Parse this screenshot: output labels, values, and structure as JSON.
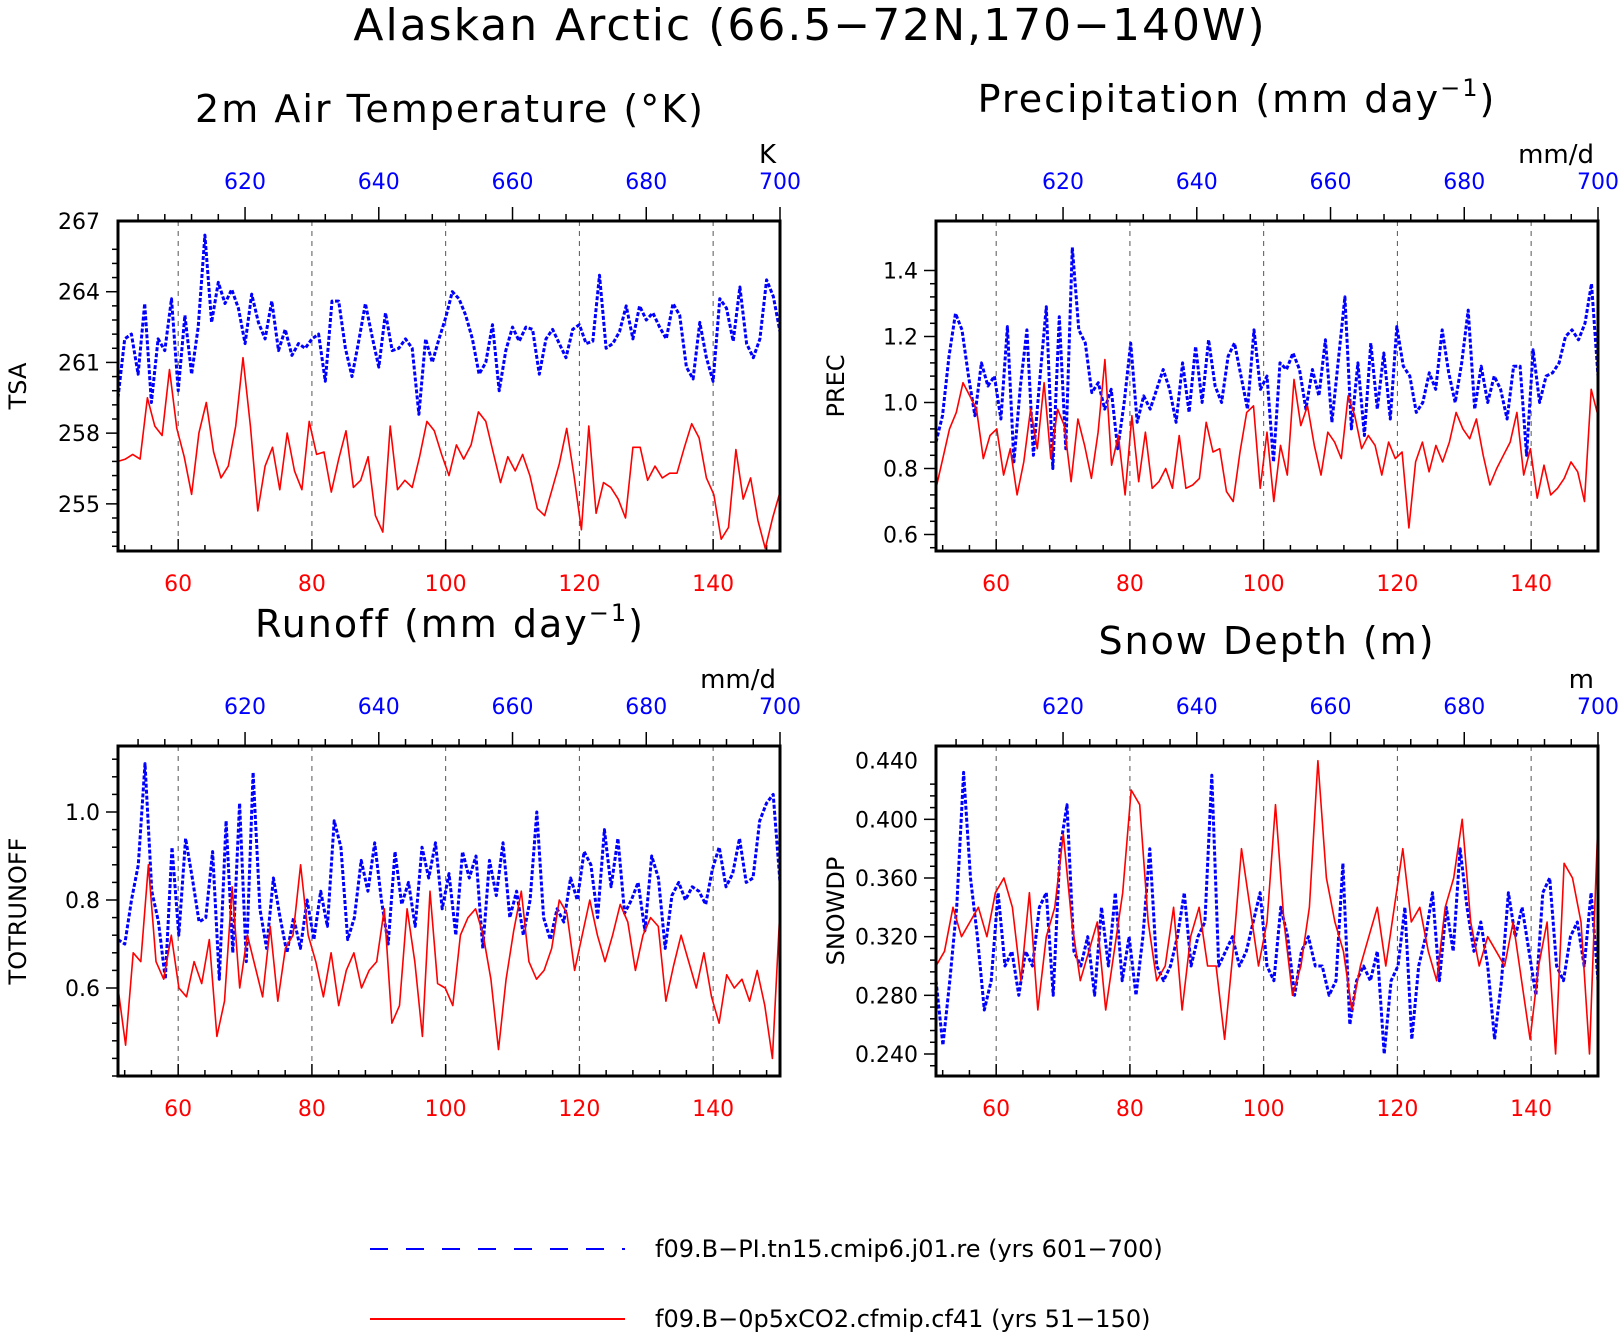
{
  "title": "Alaskan Arctic (66.5−72N,170−140W)",
  "colors": {
    "blue": "#0000ff",
    "red": "#ff0000",
    "axis": "#000000",
    "grid": "#555555"
  },
  "legend": [
    {
      "label": "f09.B−PI.tn15.cmip6.j01.re (yrs 601−700)",
      "color": "#0000ff",
      "style": "dashed"
    },
    {
      "label": "f09.B−0p5xCO2.cfmip.cf41 (yrs 51−150)",
      "color": "#ff0000",
      "style": "solid"
    }
  ],
  "chart_data": [
    {
      "type": "line",
      "title": "2m Air Temperature (°K)",
      "ylabel": "TSA",
      "unit_label": "K",
      "ylim": [
        253,
        267
      ],
      "yticks": [
        "255",
        "258",
        "261",
        "264",
        "267"
      ],
      "ytick_values": [
        255,
        258,
        261,
        264,
        267
      ],
      "bottom_axis": {
        "range": [
          51,
          150
        ],
        "ticks": [
          60,
          80,
          100,
          120,
          140
        ],
        "color": "red"
      },
      "top_axis": {
        "range": [
          601,
          700
        ],
        "ticks": [
          620,
          640,
          660,
          680,
          700
        ],
        "color": "blue"
      },
      "grid": "vertical dashed",
      "series": [
        {
          "name": "f09.B−PI.tn15.cmip6.j01.re (yrs 601−700)",
          "color": "#0000ff",
          "style": "dashed",
          "values": [
            259.5,
            262.0,
            262.2,
            260.5,
            263.5,
            259.3,
            262.0,
            261.5,
            263.7,
            259.8,
            263.0,
            260.5,
            262.5,
            266.4,
            262.7,
            264.4,
            263.5,
            264.1,
            263.3,
            261.8,
            263.9,
            262.7,
            262.0,
            263.6,
            261.5,
            262.4,
            261.3,
            261.8,
            261.6,
            262.0,
            262.2,
            260.2,
            263.6,
            263.6,
            261.6,
            260.4,
            261.9,
            263.5,
            262.1,
            260.8,
            263.1,
            261.5,
            261.6,
            262.0,
            261.6,
            258.8,
            262.0,
            261.0,
            262.0,
            262.9,
            264.0,
            263.7,
            263.0,
            262.0,
            260.5,
            261.0,
            262.6,
            259.8,
            261.5,
            262.5,
            261.9,
            262.5,
            262.4,
            260.5,
            262.0,
            262.4,
            261.8,
            261.2,
            262.4,
            262.6,
            261.8,
            261.9,
            264.7,
            261.6,
            261.8,
            262.3,
            263.4,
            262.0,
            263.4,
            262.8,
            263.1,
            262.5,
            262.0,
            263.5,
            263.0,
            260.8,
            260.3,
            262.7,
            261.2,
            260.2,
            263.7,
            263.3,
            261.9,
            264.2,
            261.8,
            261.2,
            262.0,
            264.5,
            263.8,
            262.3
          ]
        },
        {
          "name": "f09.B−0p5xCO2.cfmip.cf41 (yrs 51−150)",
          "color": "#ff0000",
          "style": "solid",
          "values": [
            256.8,
            256.9,
            257.1,
            256.9,
            259.5,
            258.3,
            257.9,
            260.7,
            258.2,
            257.0,
            255.4,
            258.0,
            259.3,
            257.2,
            256.1,
            256.6,
            258.3,
            261.2,
            258.3,
            254.7,
            256.6,
            257.4,
            255.6,
            258.0,
            256.4,
            255.6,
            258.5,
            257.1,
            257.2,
            255.5,
            256.9,
            258.1,
            255.7,
            256.0,
            257.0,
            254.5,
            253.8,
            258.3,
            255.6,
            256.0,
            255.7,
            257.0,
            258.5,
            258.1,
            257.1,
            256.2,
            257.5,
            256.9,
            257.5,
            258.9,
            258.5,
            257.2,
            255.9,
            257.0,
            256.4,
            257.1,
            256.2,
            254.8,
            254.5,
            255.6,
            256.7,
            258.2,
            256.2,
            253.9,
            258.3,
            254.6,
            255.9,
            255.7,
            255.2,
            254.4,
            257.4,
            257.4,
            256.0,
            256.6,
            256.1,
            256.3,
            256.3,
            257.4,
            258.4,
            257.8,
            256.1,
            255.4,
            253.5,
            254.0,
            257.3,
            255.2,
            256.1,
            254.3,
            253.1,
            254.4,
            255.5
          ]
        }
      ]
    },
    {
      "type": "line",
      "title": "Precipitation (mm day",
      "title_sup": "−1",
      "title_close": ")",
      "ylabel": "PREC",
      "unit_label": "mm/d",
      "ylim": [
        0.55,
        1.55
      ],
      "yticks": [
        "0.6",
        "0.8",
        "1.0",
        "1.2",
        "1.4"
      ],
      "ytick_values": [
        0.6,
        0.8,
        1.0,
        1.2,
        1.4
      ],
      "bottom_axis": {
        "range": [
          51,
          150
        ],
        "ticks": [
          60,
          80,
          100,
          120,
          140
        ],
        "color": "red"
      },
      "top_axis": {
        "range": [
          601,
          700
        ],
        "ticks": [
          620,
          640,
          660,
          680,
          700
        ],
        "color": "blue"
      },
      "grid": "vertical dashed",
      "series": [
        {
          "name": "f09.B−PI.tn15.cmip6.j01.re (yrs 601−700)",
          "color": "#0000ff",
          "style": "dashed",
          "values": [
            0.88,
            0.96,
            1.14,
            1.27,
            1.22,
            1.08,
            0.96,
            1.12,
            1.05,
            1.08,
            0.95,
            1.23,
            0.82,
            1.05,
            1.22,
            0.84,
            1.07,
            1.29,
            0.8,
            1.26,
            0.86,
            1.47,
            1.22,
            1.18,
            1.03,
            1.06,
            0.98,
            1.04,
            0.86,
            1.0,
            1.18,
            0.94,
            1.02,
            0.98,
            1.04,
            1.1,
            1.04,
            0.94,
            1.12,
            0.97,
            1.17,
            1.0,
            1.19,
            1.05,
            1.0,
            1.14,
            1.18,
            1.08,
            0.98,
            1.22,
            1.04,
            1.08,
            0.82,
            1.12,
            1.1,
            1.15,
            1.1,
            0.98,
            1.1,
            1.02,
            1.19,
            0.94,
            1.13,
            1.32,
            0.92,
            1.12,
            0.9,
            1.18,
            0.98,
            1.15,
            0.95,
            1.23,
            1.11,
            1.08,
            0.97,
            1.0,
            1.09,
            1.04,
            1.22,
            1.09,
            1.0,
            1.12,
            1.28,
            0.98,
            1.11,
            1.0,
            1.08,
            1.04,
            0.95,
            1.11,
            1.11,
            0.84,
            1.16,
            1.0,
            1.08,
            1.09,
            1.12,
            1.2,
            1.22,
            1.19,
            1.24,
            1.36,
            1.08
          ]
        },
        {
          "name": "f09.B−0p5xCO2.cfmip.cf41 (yrs 51−150)",
          "color": "#ff0000",
          "style": "solid",
          "values": [
            0.74,
            0.83,
            0.92,
            0.97,
            1.06,
            1.02,
            0.98,
            0.83,
            0.9,
            0.92,
            0.78,
            0.86,
            0.72,
            0.82,
            0.98,
            0.86,
            1.06,
            0.83,
            0.98,
            0.93,
            0.76,
            0.95,
            0.87,
            0.77,
            0.91,
            1.13,
            0.81,
            0.9,
            0.72,
            0.96,
            0.76,
            0.91,
            0.74,
            0.76,
            0.8,
            0.74,
            0.9,
            0.74,
            0.75,
            0.77,
            0.94,
            0.85,
            0.86,
            0.73,
            0.7,
            0.85,
            0.97,
            0.99,
            0.74,
            0.91,
            0.7,
            0.87,
            0.78,
            1.07,
            0.93,
            0.99,
            0.87,
            0.78,
            0.91,
            0.88,
            0.83,
            1.02,
            0.96,
            0.86,
            0.9,
            0.87,
            0.78,
            0.88,
            0.83,
            0.85,
            0.62,
            0.82,
            0.88,
            0.79,
            0.87,
            0.82,
            0.88,
            0.97,
            0.92,
            0.89,
            0.95,
            0.84,
            0.75,
            0.8,
            0.84,
            0.88,
            0.97,
            0.78,
            0.86,
            0.71,
            0.81,
            0.72,
            0.74,
            0.77,
            0.82,
            0.79,
            0.7,
            1.04,
            0.96
          ]
        }
      ]
    },
    {
      "type": "line",
      "title": "Runoff (mm day",
      "title_sup": "−1",
      "title_close": ")",
      "ylabel": "TOTRUNOFF",
      "unit_label": "mm/d",
      "ylim": [
        0.4,
        1.15
      ],
      "yticks": [
        "0.6",
        "0.8",
        "1.0"
      ],
      "ytick_values": [
        0.6,
        0.8,
        1.0
      ],
      "bottom_axis": {
        "range": [
          51,
          150
        ],
        "ticks": [
          60,
          80,
          100,
          120,
          140
        ],
        "color": "red"
      },
      "top_axis": {
        "range": [
          601,
          700
        ],
        "ticks": [
          620,
          640,
          660,
          680,
          700
        ],
        "color": "blue"
      },
      "grid": "vertical dashed",
      "series": [
        {
          "name": "f09.B−PI.tn15.cmip6.j01.re (yrs 601−700)",
          "color": "#0000ff",
          "style": "dashed",
          "values": [
            0.71,
            0.7,
            0.8,
            0.88,
            1.11,
            0.82,
            0.75,
            0.62,
            0.92,
            0.72,
            0.94,
            0.85,
            0.75,
            0.76,
            0.91,
            0.62,
            0.98,
            0.68,
            1.02,
            0.66,
            1.09,
            0.78,
            0.69,
            0.85,
            0.76,
            0.68,
            0.76,
            0.69,
            0.8,
            0.71,
            0.82,
            0.74,
            0.98,
            0.92,
            0.71,
            0.76,
            0.89,
            0.82,
            0.93,
            0.8,
            0.7,
            0.91,
            0.79,
            0.84,
            0.74,
            0.92,
            0.85,
            0.93,
            0.78,
            0.86,
            0.72,
            0.91,
            0.85,
            0.9,
            0.69,
            0.89,
            0.81,
            0.93,
            0.76,
            0.82,
            0.72,
            0.8,
            1.0,
            0.76,
            0.71,
            0.78,
            0.75,
            0.85,
            0.8,
            0.91,
            0.88,
            0.76,
            0.96,
            0.83,
            0.94,
            0.77,
            0.8,
            0.84,
            0.73,
            0.9,
            0.85,
            0.69,
            0.81,
            0.84,
            0.8,
            0.83,
            0.82,
            0.79,
            0.87,
            0.92,
            0.83,
            0.86,
            0.94,
            0.84,
            0.85,
            0.98,
            1.02,
            1.04,
            0.84
          ]
        },
        {
          "name": "f09.B−0p5xCO2.cfmip.cf41 (yrs 51−150)",
          "color": "#ff0000",
          "style": "solid",
          "values": [
            0.6,
            0.47,
            0.68,
            0.66,
            0.88,
            0.66,
            0.62,
            0.72,
            0.6,
            0.58,
            0.66,
            0.61,
            0.71,
            0.49,
            0.57,
            0.83,
            0.6,
            0.72,
            0.65,
            0.58,
            0.74,
            0.57,
            0.69,
            0.72,
            0.88,
            0.72,
            0.66,
            0.58,
            0.68,
            0.56,
            0.64,
            0.68,
            0.6,
            0.64,
            0.66,
            0.78,
            0.52,
            0.56,
            0.78,
            0.66,
            0.49,
            0.82,
            0.61,
            0.6,
            0.56,
            0.72,
            0.76,
            0.78,
            0.72,
            0.62,
            0.46,
            0.62,
            0.73,
            0.82,
            0.66,
            0.62,
            0.64,
            0.69,
            0.8,
            0.77,
            0.64,
            0.72,
            0.8,
            0.72,
            0.66,
            0.72,
            0.79,
            0.75,
            0.64,
            0.72,
            0.76,
            0.74,
            0.57,
            0.65,
            0.72,
            0.66,
            0.6,
            0.68,
            0.58,
            0.52,
            0.63,
            0.6,
            0.62,
            0.57,
            0.64,
            0.56,
            0.44,
            0.78
          ]
        }
      ]
    },
    {
      "type": "line",
      "title": "Snow Depth (m)",
      "ylabel": "SNOWDP",
      "unit_label": "m",
      "ylim": [
        0.225,
        0.45
      ],
      "yticks": [
        "0.240",
        "0.280",
        "0.320",
        "0.360",
        "0.400",
        "0.440"
      ],
      "ytick_values": [
        0.24,
        0.28,
        0.32,
        0.36,
        0.4,
        0.44
      ],
      "bottom_axis": {
        "range": [
          51,
          150
        ],
        "ticks": [
          60,
          80,
          100,
          120,
          140
        ],
        "color": "red"
      },
      "top_axis": {
        "range": [
          601,
          700
        ],
        "ticks": [
          620,
          640,
          660,
          680,
          700
        ],
        "color": "blue"
      },
      "grid": "vertical dashed",
      "series": [
        {
          "name": "f09.B−PI.tn15.cmip6.j01.re (yrs 601−700)",
          "color": "#0000ff",
          "style": "dashed",
          "values": [
            0.29,
            0.246,
            0.29,
            0.34,
            0.432,
            0.36,
            0.32,
            0.27,
            0.29,
            0.35,
            0.3,
            0.31,
            0.28,
            0.31,
            0.3,
            0.34,
            0.35,
            0.28,
            0.38,
            0.41,
            0.31,
            0.3,
            0.32,
            0.28,
            0.34,
            0.3,
            0.35,
            0.29,
            0.32,
            0.28,
            0.32,
            0.38,
            0.3,
            0.29,
            0.3,
            0.32,
            0.35,
            0.3,
            0.32,
            0.33,
            0.43,
            0.3,
            0.31,
            0.32,
            0.3,
            0.31,
            0.33,
            0.35,
            0.3,
            0.29,
            0.34,
            0.32,
            0.28,
            0.31,
            0.32,
            0.3,
            0.3,
            0.28,
            0.29,
            0.37,
            0.26,
            0.29,
            0.3,
            0.29,
            0.31,
            0.24,
            0.29,
            0.3,
            0.34,
            0.25,
            0.3,
            0.32,
            0.35,
            0.29,
            0.34,
            0.31,
            0.38,
            0.34,
            0.31,
            0.33,
            0.3,
            0.25,
            0.29,
            0.35,
            0.32,
            0.34,
            0.31,
            0.28,
            0.35,
            0.36,
            0.3,
            0.29,
            0.32,
            0.33,
            0.3,
            0.35,
            0.29
          ]
        },
        {
          "name": "f09.B−0p5xCO2.cfmip.cf41 (yrs 51−150)",
          "color": "#ff0000",
          "style": "solid",
          "values": [
            0.3,
            0.31,
            0.34,
            0.32,
            0.33,
            0.34,
            0.32,
            0.35,
            0.36,
            0.34,
            0.29,
            0.35,
            0.27,
            0.32,
            0.34,
            0.39,
            0.33,
            0.29,
            0.31,
            0.33,
            0.27,
            0.31,
            0.35,
            0.42,
            0.41,
            0.33,
            0.29,
            0.3,
            0.34,
            0.27,
            0.32,
            0.34,
            0.3,
            0.3,
            0.25,
            0.31,
            0.38,
            0.34,
            0.3,
            0.33,
            0.41,
            0.33,
            0.28,
            0.3,
            0.34,
            0.44,
            0.36,
            0.33,
            0.31,
            0.27,
            0.3,
            0.32,
            0.34,
            0.3,
            0.34,
            0.38,
            0.33,
            0.34,
            0.31,
            0.29,
            0.34,
            0.36,
            0.4,
            0.33,
            0.3,
            0.32,
            0.31,
            0.3,
            0.33,
            0.29,
            0.25,
            0.3,
            0.33,
            0.24,
            0.37,
            0.36,
            0.33,
            0.24,
            0.4
          ]
        }
      ]
    }
  ]
}
